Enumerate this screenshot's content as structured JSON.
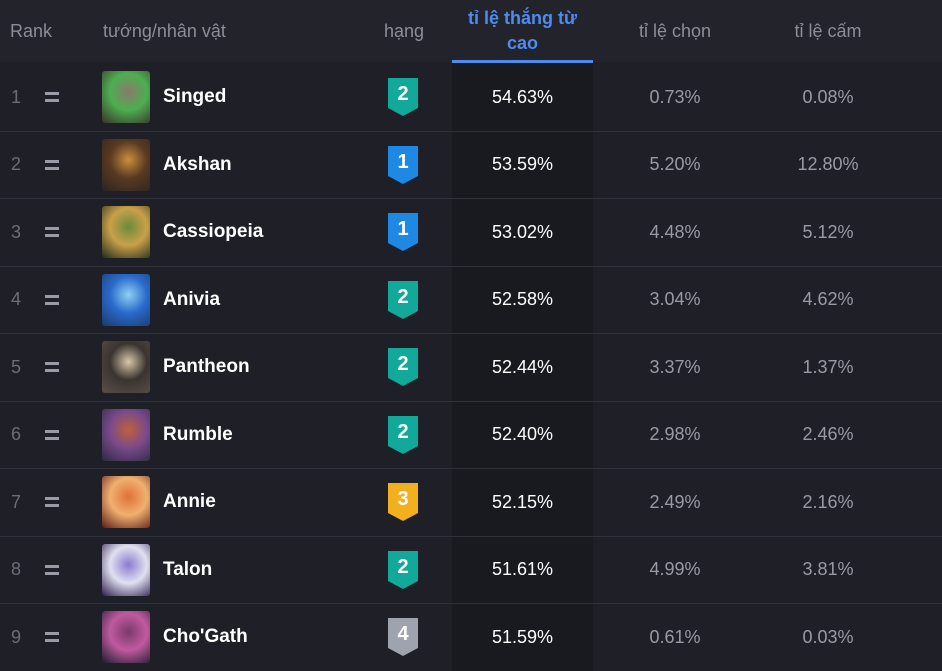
{
  "header": {
    "rank": "Rank",
    "champion": "tướng/nhân vật",
    "tier": "hạng",
    "win_line1": "tỉ lệ thắng từ",
    "win_line2": "cao",
    "pick": "tỉ lệ chọn",
    "ban": "tỉ lệ cấm"
  },
  "colors": {
    "accent": "#4d8bf0",
    "tier_1": "#1e88e5",
    "tier_2": "#12a89a",
    "tier_3": "#f2b01e",
    "tier_4": "#9ea3ad"
  },
  "rows": [
    {
      "rank": "1",
      "trend_icon": "equal-icon",
      "name": "Singed",
      "tier": "2",
      "win": "54.63%",
      "pick": "0.73%",
      "ban": "0.08%",
      "avatar": [
        "#3a2f2a",
        "#8a7a6a",
        "#4caf50"
      ]
    },
    {
      "rank": "2",
      "trend_icon": "equal-icon",
      "name": "Akshan",
      "tier": "1",
      "win": "53.59%",
      "pick": "5.20%",
      "ban": "12.80%",
      "avatar": [
        "#2c2320",
        "#c9903e",
        "#5a3a22"
      ]
    },
    {
      "rank": "3",
      "trend_icon": "equal-icon",
      "name": "Cassiopeia",
      "tier": "1",
      "win": "53.02%",
      "pick": "4.48%",
      "ban": "5.12%",
      "avatar": [
        "#1f2a1c",
        "#6b8a3a",
        "#c9a04a"
      ]
    },
    {
      "rank": "4",
      "trend_icon": "equal-icon",
      "name": "Anivia",
      "tier": "2",
      "win": "52.58%",
      "pick": "3.04%",
      "ban": "4.62%",
      "avatar": [
        "#1a3a6a",
        "#8fd0f5",
        "#2a6acb"
      ]
    },
    {
      "rank": "5",
      "trend_icon": "equal-icon",
      "name": "Pantheon",
      "tier": "2",
      "win": "52.44%",
      "pick": "3.37%",
      "ban": "1.37%",
      "avatar": [
        "#5a5048",
        "#d8c8a8",
        "#3a3430"
      ]
    },
    {
      "rank": "6",
      "trend_icon": "equal-icon",
      "name": "Rumble",
      "tier": "2",
      "win": "52.40%",
      "pick": "2.98%",
      "ban": "2.46%",
      "avatar": [
        "#2a2a40",
        "#c0603a",
        "#7a4a8a"
      ]
    },
    {
      "rank": "7",
      "trend_icon": "equal-icon",
      "name": "Annie",
      "tier": "3",
      "win": "52.15%",
      "pick": "2.49%",
      "ban": "2.16%",
      "avatar": [
        "#5a1a14",
        "#e0703a",
        "#f0b070"
      ]
    },
    {
      "rank": "8",
      "trend_icon": "equal-icon",
      "name": "Talon",
      "tier": "2",
      "win": "51.61%",
      "pick": "4.99%",
      "ban": "3.81%",
      "avatar": [
        "#2a1a4a",
        "#8a7ad0",
        "#e0e0f0"
      ]
    },
    {
      "rank": "9",
      "trend_icon": "equal-icon",
      "name": "Cho'Gath",
      "tier": "4",
      "win": "51.59%",
      "pick": "0.61%",
      "ban": "0.03%",
      "avatar": [
        "#1a1a2a",
        "#7a3a6a",
        "#c05aa0"
      ]
    }
  ]
}
